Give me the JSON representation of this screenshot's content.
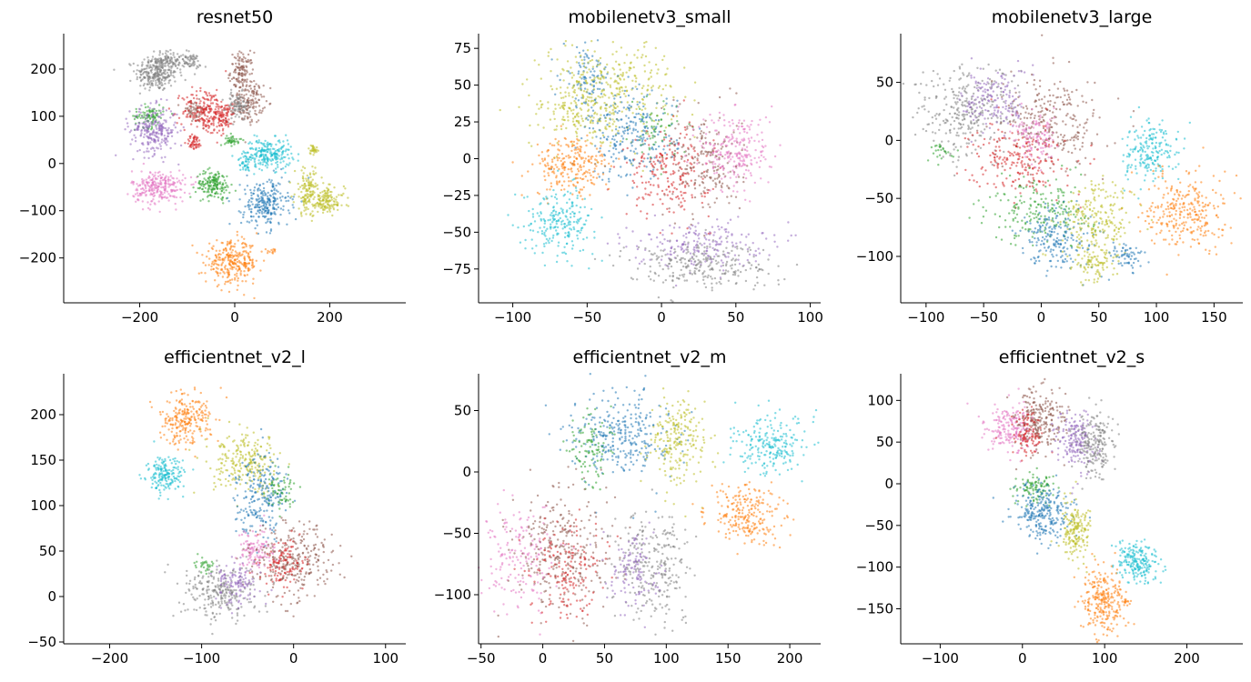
{
  "chart_data": [
    {
      "type": "scatter",
      "title": "resnet50",
      "xlabel": "",
      "ylabel": "",
      "xlim": [
        -360,
        360
      ],
      "ylim": [
        -295,
        275
      ],
      "xticks": [
        -200,
        0,
        200
      ],
      "yticks": [
        -200,
        -100,
        0,
        100,
        200
      ],
      "grid": false,
      "palette": [
        "#1f77b4",
        "#ff7f0e",
        "#2ca02c",
        "#d62728",
        "#9467bd",
        "#8c564b",
        "#e377c2",
        "#7f7f7f",
        "#bcbd22",
        "#17becf"
      ],
      "clusters": [
        {
          "color_index": 7,
          "cx": -165,
          "cy": 190,
          "sx": 22,
          "sy": 18,
          "n": 260
        },
        {
          "color_index": 7,
          "cx": -140,
          "cy": 220,
          "sx": 20,
          "sy": 10,
          "n": 90
        },
        {
          "color_index": 7,
          "cx": -95,
          "cy": 215,
          "sx": 12,
          "sy": 9,
          "n": 60
        },
        {
          "color_index": 5,
          "cx": 15,
          "cy": 195,
          "sx": 12,
          "sy": 20,
          "n": 120
        },
        {
          "color_index": 5,
          "cx": 30,
          "cy": 130,
          "sx": 15,
          "sy": 22,
          "n": 150
        },
        {
          "color_index": 5,
          "cx": -85,
          "cy": 110,
          "sx": 14,
          "sy": 12,
          "n": 60
        },
        {
          "color_index": 7,
          "cx": 5,
          "cy": 120,
          "sx": 12,
          "sy": 15,
          "n": 90
        },
        {
          "color_index": 3,
          "cx": -60,
          "cy": 110,
          "sx": 25,
          "sy": 25,
          "n": 220
        },
        {
          "color_index": 3,
          "cx": -85,
          "cy": 45,
          "sx": 8,
          "sy": 8,
          "n": 50
        },
        {
          "color_index": 3,
          "cx": -20,
          "cy": 100,
          "sx": 8,
          "sy": 14,
          "n": 60
        },
        {
          "color_index": 2,
          "cx": -180,
          "cy": 100,
          "sx": 15,
          "sy": 12,
          "n": 90
        },
        {
          "color_index": 4,
          "cx": -170,
          "cy": 70,
          "sx": 25,
          "sy": 25,
          "n": 250
        },
        {
          "color_index": 2,
          "cx": -5,
          "cy": 50,
          "sx": 8,
          "sy": 6,
          "n": 40
        },
        {
          "color_index": 9,
          "cx": 70,
          "cy": 20,
          "sx": 25,
          "sy": 16,
          "n": 230
        },
        {
          "color_index": 9,
          "cx": 20,
          "cy": 0,
          "sx": 6,
          "sy": 8,
          "n": 35
        },
        {
          "color_index": 8,
          "cx": 165,
          "cy": 30,
          "sx": 5,
          "sy": 5,
          "n": 30
        },
        {
          "color_index": 6,
          "cx": -160,
          "cy": -50,
          "sx": 28,
          "sy": 18,
          "n": 260
        },
        {
          "color_index": 2,
          "cx": -45,
          "cy": -45,
          "sx": 18,
          "sy": 15,
          "n": 170
        },
        {
          "color_index": 0,
          "cx": 65,
          "cy": -85,
          "sx": 25,
          "sy": 25,
          "n": 250
        },
        {
          "color_index": 8,
          "cx": 155,
          "cy": -60,
          "sx": 14,
          "sy": 25,
          "n": 140
        },
        {
          "color_index": 8,
          "cx": 195,
          "cy": -80,
          "sx": 18,
          "sy": 14,
          "n": 130
        },
        {
          "color_index": 1,
          "cx": -5,
          "cy": -210,
          "sx": 28,
          "sy": 22,
          "n": 290
        },
        {
          "color_index": 1,
          "cx": 80,
          "cy": -185,
          "sx": 6,
          "sy": 3,
          "n": 12
        }
      ]
    },
    {
      "type": "scatter",
      "title": "mobilenetv3_small",
      "xlabel": "",
      "ylabel": "",
      "xlim": [
        -123,
        107
      ],
      "ylim": [
        -98,
        85
      ],
      "xticks": [
        -100,
        -50,
        0,
        50,
        100
      ],
      "yticks": [
        -75,
        -50,
        -25,
        0,
        25,
        50,
        75
      ],
      "grid": false,
      "palette": [
        "#1f77b4",
        "#ff7f0e",
        "#2ca02c",
        "#d62728",
        "#9467bd",
        "#8c564b",
        "#e377c2",
        "#7f7f7f",
        "#bcbd22",
        "#17becf"
      ],
      "clusters": [
        {
          "color_index": 0,
          "cx": -50,
          "cy": 55,
          "sx": 8,
          "sy": 10,
          "n": 100
        },
        {
          "color_index": 8,
          "cx": -35,
          "cy": 48,
          "sx": 22,
          "sy": 16,
          "n": 340
        },
        {
          "color_index": 8,
          "cx": -55,
          "cy": 28,
          "sx": 12,
          "sy": 10,
          "n": 120
        },
        {
          "color_index": 0,
          "cx": -20,
          "cy": 15,
          "sx": 15,
          "sy": 15,
          "n": 250
        },
        {
          "color_index": 2,
          "cx": -5,
          "cy": 18,
          "sx": 8,
          "sy": 10,
          "n": 60
        },
        {
          "color_index": 1,
          "cx": -60,
          "cy": -5,
          "sx": 13,
          "sy": 10,
          "n": 240
        },
        {
          "color_index": 9,
          "cx": -68,
          "cy": -42,
          "sx": 12,
          "sy": 11,
          "n": 220
        },
        {
          "color_index": 3,
          "cx": 5,
          "cy": -10,
          "sx": 14,
          "sy": 15,
          "n": 220
        },
        {
          "color_index": 5,
          "cx": 30,
          "cy": -2,
          "sx": 12,
          "sy": 18,
          "n": 200
        },
        {
          "color_index": 6,
          "cx": 50,
          "cy": 5,
          "sx": 12,
          "sy": 14,
          "n": 240
        },
        {
          "color_index": 4,
          "cx": 25,
          "cy": -58,
          "sx": 22,
          "sy": 8,
          "n": 200
        },
        {
          "color_index": 7,
          "cx": 25,
          "cy": -72,
          "sx": 25,
          "sy": 8,
          "n": 260
        }
      ]
    },
    {
      "type": "scatter",
      "title": "mobilenetv3_large",
      "xlabel": "",
      "ylabel": "",
      "xlim": [
        -122,
        175
      ],
      "ylim": [
        -140,
        92
      ],
      "xticks": [
        -100,
        -50,
        0,
        50,
        100,
        150
      ],
      "yticks": [
        -100,
        -50,
        0,
        50
      ],
      "grid": false,
      "palette": [
        "#1f77b4",
        "#ff7f0e",
        "#2ca02c",
        "#d62728",
        "#9467bd",
        "#8c564b",
        "#e377c2",
        "#7f7f7f",
        "#bcbd22",
        "#17becf"
      ],
      "clusters": [
        {
          "color_index": 7,
          "cx": -65,
          "cy": 25,
          "sx": 22,
          "sy": 20,
          "n": 300
        },
        {
          "color_index": 4,
          "cx": -40,
          "cy": 35,
          "sx": 14,
          "sy": 14,
          "n": 160
        },
        {
          "color_index": 2,
          "cx": -85,
          "cy": -10,
          "sx": 6,
          "sy": 4,
          "n": 25
        },
        {
          "color_index": 5,
          "cx": 10,
          "cy": 15,
          "sx": 22,
          "sy": 20,
          "n": 260
        },
        {
          "color_index": 3,
          "cx": -20,
          "cy": -15,
          "sx": 20,
          "sy": 15,
          "n": 220
        },
        {
          "color_index": 6,
          "cx": -5,
          "cy": 0,
          "sx": 10,
          "sy": 10,
          "n": 120
        },
        {
          "color_index": 9,
          "cx": 95,
          "cy": -10,
          "sx": 12,
          "sy": 13,
          "n": 200
        },
        {
          "color_index": 1,
          "cx": 125,
          "cy": -60,
          "sx": 17,
          "sy": 17,
          "n": 290
        },
        {
          "color_index": 2,
          "cx": 0,
          "cy": -60,
          "sx": 22,
          "sy": 14,
          "n": 200
        },
        {
          "color_index": 0,
          "cx": 15,
          "cy": -85,
          "sx": 18,
          "sy": 14,
          "n": 200
        },
        {
          "color_index": 8,
          "cx": 50,
          "cy": -70,
          "sx": 15,
          "sy": 18,
          "n": 220
        },
        {
          "color_index": 8,
          "cx": 45,
          "cy": -105,
          "sx": 10,
          "sy": 8,
          "n": 80
        },
        {
          "color_index": 0,
          "cx": 75,
          "cy": -100,
          "sx": 8,
          "sy": 6,
          "n": 60
        }
      ]
    },
    {
      "type": "scatter",
      "title": "efficientnet_v2_l",
      "xlabel": "",
      "ylabel": "",
      "xlim": [
        -250,
        122
      ],
      "ylim": [
        -52,
        245
      ],
      "xticks": [
        -200,
        -100,
        0,
        100
      ],
      "yticks": [
        -50,
        0,
        50,
        100,
        150,
        200
      ],
      "grid": false,
      "palette": [
        "#1f77b4",
        "#ff7f0e",
        "#2ca02c",
        "#d62728",
        "#9467bd",
        "#8c564b",
        "#e377c2",
        "#7f7f7f",
        "#bcbd22",
        "#17becf"
      ],
      "clusters": [
        {
          "color_index": 1,
          "cx": -118,
          "cy": 195,
          "sx": 14,
          "sy": 14,
          "n": 240
        },
        {
          "color_index": 9,
          "cx": -140,
          "cy": 132,
          "sx": 10,
          "sy": 10,
          "n": 180
        },
        {
          "color_index": 8,
          "cx": -50,
          "cy": 145,
          "sx": 20,
          "sy": 16,
          "n": 240
        },
        {
          "color_index": 0,
          "cx": -35,
          "cy": 115,
          "sx": 14,
          "sy": 22,
          "n": 230
        },
        {
          "color_index": 2,
          "cx": -15,
          "cy": 115,
          "sx": 8,
          "sy": 12,
          "n": 60
        },
        {
          "color_index": 6,
          "cx": -40,
          "cy": 50,
          "sx": 10,
          "sy": 12,
          "n": 120
        },
        {
          "color_index": 5,
          "cx": 0,
          "cy": 40,
          "sx": 22,
          "sy": 20,
          "n": 280
        },
        {
          "color_index": 3,
          "cx": -10,
          "cy": 35,
          "sx": 12,
          "sy": 14,
          "n": 120
        },
        {
          "color_index": 7,
          "cx": -80,
          "cy": 5,
          "sx": 20,
          "sy": 15,
          "n": 250
        },
        {
          "color_index": 4,
          "cx": -60,
          "cy": 15,
          "sx": 12,
          "sy": 12,
          "n": 120
        },
        {
          "color_index": 2,
          "cx": -95,
          "cy": 35,
          "sx": 6,
          "sy": 4,
          "n": 30
        }
      ]
    },
    {
      "type": "scatter",
      "title": "efficientnet_v2_m",
      "xlabel": "",
      "ylabel": "",
      "xlim": [
        -52,
        225
      ],
      "ylim": [
        -140,
        80
      ],
      "xticks": [
        -50,
        0,
        50,
        100,
        150,
        200
      ],
      "yticks": [
        -100,
        -50,
        0,
        50
      ],
      "grid": false,
      "palette": [
        "#1f77b4",
        "#ff7f0e",
        "#2ca02c",
        "#d62728",
        "#9467bd",
        "#8c564b",
        "#e377c2",
        "#7f7f7f",
        "#bcbd22",
        "#17becf"
      ],
      "clusters": [
        {
          "color_index": 0,
          "cx": 65,
          "cy": 30,
          "sx": 20,
          "sy": 17,
          "n": 300
        },
        {
          "color_index": 2,
          "cx": 38,
          "cy": 20,
          "sx": 8,
          "sy": 15,
          "n": 100
        },
        {
          "color_index": 8,
          "cx": 110,
          "cy": 25,
          "sx": 12,
          "sy": 18,
          "n": 220
        },
        {
          "color_index": 9,
          "cx": 185,
          "cy": 22,
          "sx": 15,
          "sy": 12,
          "n": 220
        },
        {
          "color_index": 1,
          "cx": 165,
          "cy": -35,
          "sx": 15,
          "sy": 12,
          "n": 240
        },
        {
          "color_index": 6,
          "cx": -20,
          "cy": -70,
          "sx": 15,
          "sy": 20,
          "n": 180
        },
        {
          "color_index": 5,
          "cx": 15,
          "cy": -65,
          "sx": 20,
          "sy": 25,
          "n": 300
        },
        {
          "color_index": 3,
          "cx": 20,
          "cy": -80,
          "sx": 15,
          "sy": 20,
          "n": 160
        },
        {
          "color_index": 7,
          "cx": 90,
          "cy": -75,
          "sx": 15,
          "sy": 22,
          "n": 260
        },
        {
          "color_index": 4,
          "cx": 75,
          "cy": -80,
          "sx": 10,
          "sy": 15,
          "n": 120
        }
      ]
    },
    {
      "type": "scatter",
      "title": "efficientnet_v2_s",
      "xlabel": "",
      "ylabel": "",
      "xlim": [
        -148,
        268
      ],
      "ylim": [
        -192,
        132
      ],
      "xticks": [
        -100,
        0,
        100,
        200
      ],
      "yticks": [
        -150,
        -100,
        -50,
        0,
        50,
        100
      ],
      "grid": false,
      "palette": [
        "#1f77b4",
        "#ff7f0e",
        "#2ca02c",
        "#d62728",
        "#9467bd",
        "#8c564b",
        "#e377c2",
        "#7f7f7f",
        "#bcbd22",
        "#17becf"
      ],
      "clusters": [
        {
          "color_index": 6,
          "cx": -15,
          "cy": 65,
          "sx": 15,
          "sy": 15,
          "n": 200
        },
        {
          "color_index": 5,
          "cx": 20,
          "cy": 75,
          "sx": 15,
          "sy": 20,
          "n": 230
        },
        {
          "color_index": 3,
          "cx": 5,
          "cy": 60,
          "sx": 10,
          "sy": 15,
          "n": 100
        },
        {
          "color_index": 4,
          "cx": 65,
          "cy": 50,
          "sx": 12,
          "sy": 18,
          "n": 180
        },
        {
          "color_index": 7,
          "cx": 90,
          "cy": 45,
          "sx": 12,
          "sy": 20,
          "n": 200
        },
        {
          "color_index": 2,
          "cx": 15,
          "cy": -5,
          "sx": 12,
          "sy": 8,
          "n": 100
        },
        {
          "color_index": 0,
          "cx": 25,
          "cy": -35,
          "sx": 17,
          "sy": 18,
          "n": 260
        },
        {
          "color_index": 8,
          "cx": 65,
          "cy": -55,
          "sx": 10,
          "sy": 17,
          "n": 180
        },
        {
          "color_index": 9,
          "cx": 140,
          "cy": -95,
          "sx": 13,
          "sy": 12,
          "n": 210
        },
        {
          "color_index": 1,
          "cx": 100,
          "cy": -140,
          "sx": 13,
          "sy": 20,
          "n": 260
        },
        {
          "color_index": 1,
          "cx": 125,
          "cy": -140,
          "sx": 3,
          "sy": 3,
          "n": 12
        }
      ]
    }
  ]
}
